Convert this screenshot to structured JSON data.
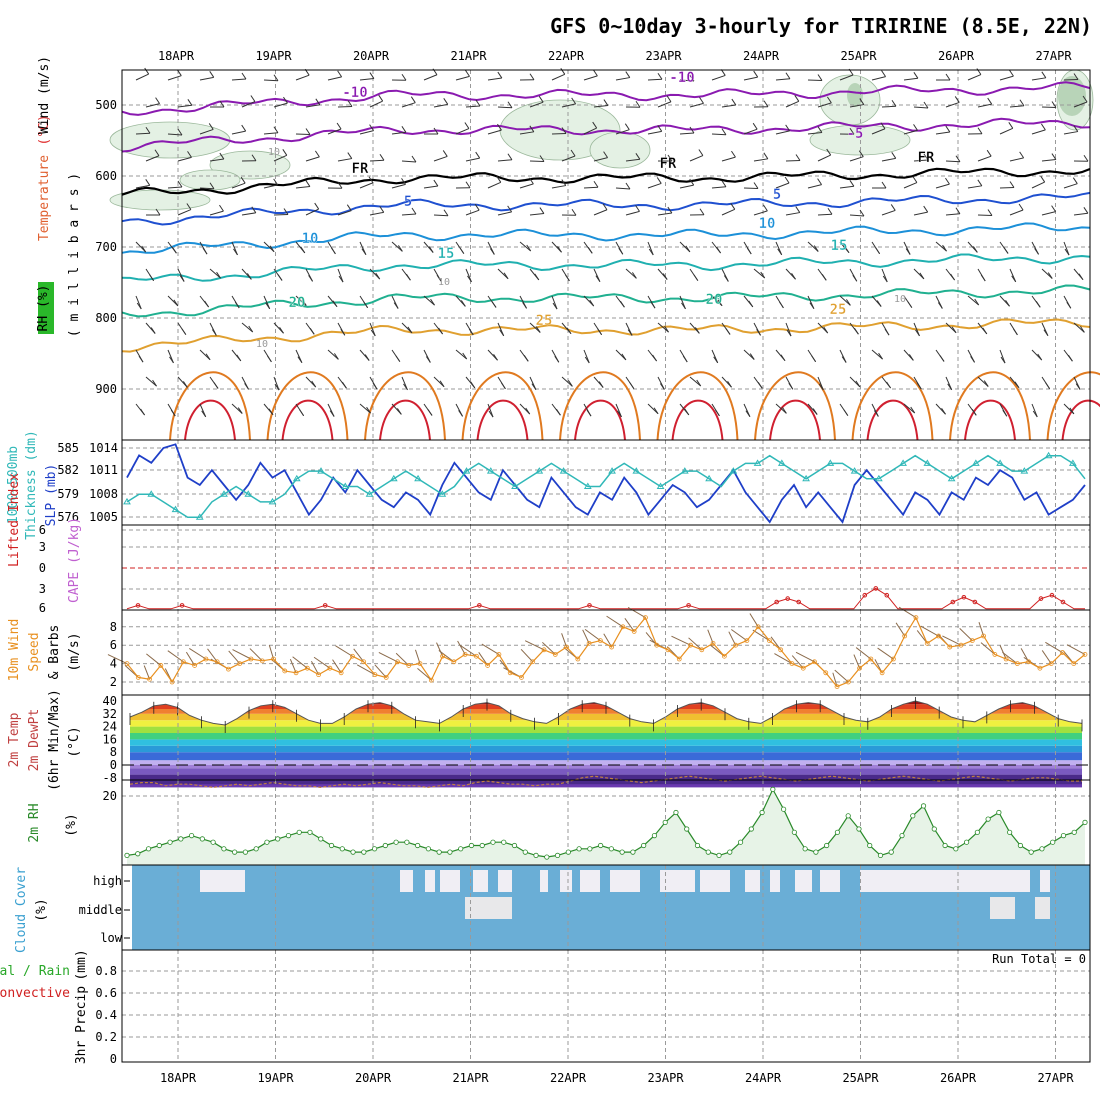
{
  "title": "GFS 0~10day 3-hourly for TIRIRINE (8.5E, 22N)",
  "run_total": "Run Total = 0",
  "colors": {
    "rh_fill": "#e4f1e4",
    "rh_fill_dark": "#b8d4b8",
    "cloud": "#6aaed6",
    "cloud_clear": "#f0eef4",
    "slp": "#1f3fc8",
    "thickness": "#30b8b8",
    "li": "#d02020",
    "wind10": "#e89020",
    "rh2m": "#2a8a2a"
  },
  "chart_data": [
    {
      "type": "line",
      "panel": "upper-air",
      "x_dates": [
        "18APR",
        "19APR",
        "20APR",
        "21APR",
        "22APR",
        "23APR",
        "24APR",
        "25APR",
        "26APR",
        "27APR"
      ],
      "ylabel_parts": [
        "RH (%)",
        "Temperature",
        "(°C)",
        "Wind (m/s)"
      ],
      "ylabel_axis": "( m i l l i b a r s )",
      "yticks": [
        "500",
        "600",
        "700",
        "800",
        "900"
      ],
      "ylim": [
        975,
        450
      ],
      "contour_labels": {
        "temperature": [
          "-10",
          "-10",
          "-5",
          "5",
          "5",
          "10",
          "10",
          "15",
          "15",
          "20",
          "20",
          "25",
          "25"
        ],
        "freezing": [
          "FR",
          "FR",
          "FR"
        ],
        "rh": [
          "10",
          "10",
          "10",
          "10"
        ]
      },
      "isotherms": [
        {
          "label": "-10",
          "color": "#8a1ab0",
          "points": [
            [
              500,
              1.6
            ],
            [
              490,
              1.5
            ],
            [
              485,
              1.5
            ],
            [
              480,
              1.5
            ]
          ]
        },
        {
          "label": "-5",
          "color": "#8a1ab0",
          "points": [
            [
              540,
              1.4
            ],
            [
              530,
              1.3
            ],
            [
              525,
              1.3
            ],
            [
              530,
              1.3
            ]
          ]
        },
        {
          "label": "FR",
          "color": "#000000",
          "points": [
            [
              605,
              1.8
            ],
            [
              592,
              1.6
            ],
            [
              585,
              1.4
            ],
            [
              575,
              1.3
            ]
          ]
        },
        {
          "label": "5",
          "color": "#1f50d0",
          "points": [
            [
              650,
              1.8
            ],
            [
              630,
              1.6
            ],
            [
              620,
              1.4
            ],
            [
              612,
              1.3
            ]
          ]
        },
        {
          "label": "10",
          "color": "#1c90d8",
          "points": [
            [
              690,
              1.8
            ],
            [
              670,
              1.6
            ],
            [
              665,
              1.4
            ],
            [
              655,
              1.3
            ]
          ]
        },
        {
          "label": "15",
          "color": "#20b0b0",
          "points": [
            [
              740,
              1.8
            ],
            [
              715,
              1.6
            ],
            [
              705,
              1.4
            ],
            [
              700,
              1.3
            ]
          ]
        },
        {
          "label": "20",
          "color": "#20b090",
          "points": [
            [
              790,
              1.8
            ],
            [
              770,
              1.6
            ],
            [
              765,
              1.4
            ],
            [
              755,
              1.3
            ]
          ]
        },
        {
          "label": "25",
          "color": "#e0a030",
          "points": [
            [
              840,
              1.8
            ],
            [
              825,
              1.6
            ],
            [
              815,
              1.4
            ],
            [
              810,
              1.3
            ]
          ]
        }
      ]
    },
    {
      "type": "line",
      "panel": "slp-thickness",
      "ylabel_left": "1000~500mb Thickness (dm)",
      "ylabel_right": "SLP (mb)",
      "yticks_left": [
        "585",
        "582",
        "579",
        "576"
      ],
      "yticks_right": [
        "1014",
        "1011",
        "1008",
        "1005"
      ],
      "series": [
        {
          "name": "SLP (mb)",
          "color": "#1f3fc8",
          "values": [
            1010,
            1013,
            1012,
            1014,
            1014.5,
            1010,
            1009,
            1011,
            1009,
            1007,
            1009,
            1012,
            1010,
            1011,
            1008,
            1005,
            1007,
            1010,
            1008,
            1011,
            1009,
            1007,
            1006,
            1008,
            1007,
            1005,
            1009,
            1012,
            1010,
            1008,
            1007,
            1011,
            1009,
            1007,
            1006,
            1010,
            1008,
            1006,
            1005,
            1008,
            1007,
            1010,
            1008,
            1005,
            1007,
            1009,
            1008,
            1006,
            1007,
            1009,
            1011,
            1008,
            1006,
            1004,
            1007,
            1009,
            1006,
            1008,
            1006,
            1004,
            1009,
            1011,
            1009,
            1007,
            1005,
            1008,
            1007,
            1005,
            1008,
            1007,
            1010,
            1009,
            1011,
            1010,
            1007,
            1008,
            1005,
            1006,
            1007,
            1009
          ]
        },
        {
          "name": "1000~500mb Thickness (dm)",
          "color": "#30b8b8",
          "values": [
            578,
            579,
            579,
            578,
            577,
            576,
            576,
            578,
            579,
            580,
            579,
            578,
            578,
            579,
            581,
            582,
            582,
            581,
            580,
            580,
            579,
            580,
            581,
            582,
            581,
            580,
            579,
            580,
            582,
            583,
            582,
            581,
            580,
            581,
            582,
            583,
            582,
            581,
            580,
            580,
            582,
            583,
            582,
            581,
            580,
            581,
            582,
            582,
            581,
            580,
            582,
            583,
            583,
            584,
            583,
            582,
            581,
            582,
            583,
            583,
            582,
            581,
            581,
            582,
            583,
            584,
            583,
            582,
            581,
            582,
            583,
            584,
            583,
            582,
            582,
            583,
            584,
            584,
            583,
            581
          ]
        }
      ]
    },
    {
      "type": "line",
      "panel": "lifted-index",
      "ylabel_left": "Lifted Index",
      "ylabel_right": "CAPE (J/kg)",
      "yticks": [
        "6",
        "3",
        "0",
        "3",
        "6"
      ],
      "series": [
        {
          "name": "Lifted Index",
          "color": "#d02020",
          "values": [
            6,
            5.5,
            6,
            6,
            6,
            5.5,
            6,
            6,
            6,
            6,
            6,
            6,
            6,
            6,
            6,
            6,
            6,
            6,
            5.5,
            6,
            6,
            6,
            6,
            6,
            6,
            6,
            6,
            6,
            6,
            6,
            6,
            6,
            5.5,
            6,
            6,
            6,
            6,
            6,
            6,
            6,
            6,
            6,
            5.5,
            6,
            6,
            6,
            6,
            6,
            6,
            6,
            6,
            5.5,
            6,
            6,
            6,
            6,
            6,
            6,
            6,
            5,
            4.5,
            5,
            6,
            6,
            6,
            6,
            6,
            4,
            3,
            4,
            6,
            6,
            6,
            6,
            6,
            5,
            4.3,
            5,
            6,
            6,
            6,
            6,
            6,
            4.5,
            4,
            5,
            6,
            6
          ]
        }
      ]
    },
    {
      "type": "line",
      "panel": "wind10m",
      "ylabel_parts": [
        "10m Wind",
        "Speed",
        "& Barbs"
      ],
      "yunit": "(m/s)",
      "yticks": [
        "8",
        "6",
        "4",
        "2"
      ],
      "series": [
        {
          "name": "10m Wind Speed",
          "color": "#e89020",
          "values": [
            4.0,
            2.5,
            2.3,
            3.8,
            2.0,
            4.2,
            3.8,
            4.5,
            4.2,
            3.4,
            4.0,
            4.5,
            4.3,
            4.5,
            3.2,
            3.0,
            3.5,
            2.8,
            3.5,
            3.0,
            4.8,
            4.2,
            2.8,
            2.5,
            4.2,
            3.8,
            4.0,
            2.2,
            4.8,
            4.2,
            5.0,
            4.8,
            3.8,
            5.0,
            3.0,
            2.5,
            4.2,
            5.5,
            5.0,
            5.8,
            4.5,
            6.2,
            6.5,
            5.8,
            8.0,
            7.5,
            9.0,
            6.0,
            5.5,
            4.5,
            6.0,
            5.5,
            6.2,
            4.8,
            6.0,
            6.5,
            8.0,
            6.5,
            5.5,
            4.0,
            3.5,
            4.2,
            3.0,
            1.5,
            2.0,
            3.5,
            4.5,
            3.0,
            4.5,
            7.0,
            9.0,
            6.2,
            7.0,
            5.8,
            6.0,
            6.5,
            7.0,
            5.0,
            4.5,
            4.0,
            4.2,
            3.5,
            4.0,
            5.2,
            4.0,
            5.0
          ]
        }
      ]
    },
    {
      "type": "area",
      "panel": "temp2m",
      "ylabel_parts": [
        "2m Temp",
        "2m DewPt",
        "(6hr Min/Max)"
      ],
      "yunit": "(°C)",
      "yticks": [
        "40",
        "32",
        "24",
        "16",
        "8",
        "0",
        "-8"
      ],
      "series": [
        {
          "name": "2m Temp",
          "values": [
            30,
            33,
            37,
            38,
            36,
            31,
            28,
            26,
            25,
            29,
            34,
            37,
            38,
            36,
            32,
            28,
            26,
            26,
            30,
            35,
            38,
            39,
            37,
            32,
            28,
            27,
            26,
            30,
            35,
            38,
            39,
            37,
            32,
            29,
            27,
            26,
            30,
            35,
            38,
            39,
            37,
            33,
            29,
            27,
            26,
            30,
            35,
            38,
            39,
            37,
            33,
            29,
            27,
            26,
            30,
            35,
            38,
            39,
            38,
            34,
            30,
            28,
            27,
            30,
            35,
            38,
            40,
            38,
            34,
            30,
            28,
            27,
            31,
            35,
            38,
            39,
            37,
            33,
            29,
            27,
            26
          ]
        },
        {
          "name": "2m DewPt",
          "values": [
            -12,
            -11,
            -11,
            -13,
            -12,
            -12,
            -13,
            -14,
            -13,
            -12,
            -13,
            -12,
            -11,
            -12,
            -13,
            -13,
            -14,
            -13,
            -12,
            -13,
            -12,
            -11,
            -12,
            -13,
            -13,
            -14,
            -13,
            -12,
            -13,
            -11,
            -10,
            -11,
            -12,
            -12,
            -13,
            -12,
            -12,
            -10,
            -8,
            -7,
            -8,
            -9,
            -10,
            -11,
            -10,
            -9,
            -8,
            -7,
            -8,
            -9,
            -10,
            -9,
            -8,
            -7,
            -8,
            -9,
            -10,
            -9,
            -8,
            -7,
            -8,
            -9,
            -10,
            -9,
            -8,
            -7,
            -8,
            -9,
            -10,
            -9,
            -8,
            -7,
            -8,
            -9,
            -10,
            -9,
            -8,
            -8,
            -9,
            -10,
            -10
          ]
        }
      ]
    },
    {
      "type": "area",
      "panel": "rh2m",
      "ylabel_parts": [
        "2m RH"
      ],
      "yunit": "(%)",
      "yticks": [
        "20"
      ],
      "series": [
        {
          "name": "2m RH",
          "color": "#2a8a2a",
          "values": [
            2,
            2.5,
            4,
            5,
            6,
            7,
            8,
            7,
            6,
            4,
            3,
            3,
            4,
            6,
            7,
            8,
            9,
            9,
            7,
            5,
            4,
            3,
            3,
            4,
            5,
            6,
            6,
            5,
            4,
            3,
            3,
            4,
            5,
            5,
            6,
            6,
            5,
            3,
            2,
            1.5,
            2,
            3,
            4,
            4,
            5,
            4,
            3,
            3,
            5,
            8,
            12,
            15,
            10,
            5,
            3,
            2,
            3,
            6,
            10,
            15,
            22,
            16,
            9,
            4,
            3,
            5,
            9,
            14,
            10,
            5,
            2,
            3,
            8,
            14,
            17,
            10,
            5,
            4,
            6,
            9,
            13,
            15,
            9,
            5,
            3,
            4,
            6,
            8,
            9,
            12
          ]
        }
      ]
    },
    {
      "type": "heatmap",
      "panel": "cloud",
      "ylabel_parts": [
        "Cloud Cover",
        "(%)"
      ],
      "yticks": [
        "high",
        "middle",
        "low"
      ],
      "clear_high": [
        [
          200,
          230
        ],
        [
          230,
          245
        ],
        [
          400,
          413
        ],
        [
          425,
          435
        ],
        [
          440,
          460
        ],
        [
          473,
          488
        ],
        [
          498,
          512
        ],
        [
          540,
          548
        ],
        [
          560,
          572
        ],
        [
          580,
          600
        ],
        [
          610,
          640
        ],
        [
          660,
          695
        ],
        [
          700,
          730
        ],
        [
          745,
          760
        ],
        [
          770,
          780
        ],
        [
          795,
          812
        ],
        [
          820,
          840
        ],
        [
          860,
          1030
        ],
        [
          1040,
          1050
        ]
      ],
      "clear_mid": [
        [
          465,
          490
        ],
        [
          490,
          512
        ],
        [
          990,
          1015
        ],
        [
          1035,
          1050
        ]
      ]
    },
    {
      "type": "bar",
      "panel": "precip",
      "ylabel_parts": [
        "Total / Rain",
        "Convective",
        "3hr Precip",
        "(mm)"
      ],
      "yticks": [
        "0.8",
        "0.6",
        "0.4",
        "0.2",
        "0"
      ],
      "ylim": [
        0,
        0.9
      ],
      "values": []
    }
  ]
}
